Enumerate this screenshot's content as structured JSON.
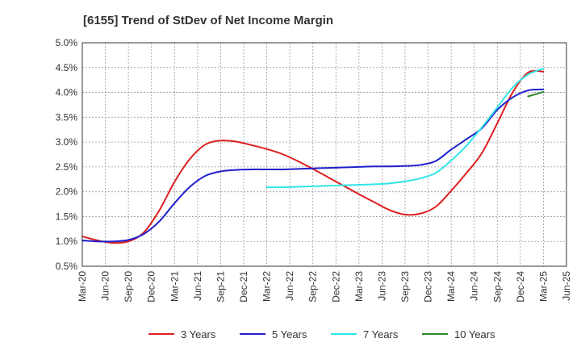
{
  "chart_data": {
    "type": "line",
    "title": "[6155]  Trend of StDev of Net Income Margin",
    "xlabel": "",
    "ylabel": "",
    "x_ticks": [
      "Mar-20",
      "Jun-20",
      "Sep-20",
      "Dec-20",
      "Mar-21",
      "Jun-21",
      "Sep-21",
      "Dec-21",
      "Mar-22",
      "Jun-22",
      "Sep-22",
      "Dec-22",
      "Mar-23",
      "Jun-23",
      "Sep-23",
      "Dec-23",
      "Mar-24",
      "Jun-24",
      "Sep-24",
      "Dec-24",
      "Mar-25",
      "Jun-25"
    ],
    "y_ticks": [
      "0.5%",
      "1.0%",
      "1.5%",
      "2.0%",
      "2.5%",
      "3.0%",
      "3.5%",
      "4.0%",
      "4.5%",
      "5.0%"
    ],
    "ylim": [
      0.5,
      5.0
    ],
    "grid": true,
    "legend_position": "bottom",
    "series": [
      {
        "name": "3 Years",
        "color": "#dd1f1f",
        "x": [
          "Mar-20",
          "May-20",
          "Jul-20",
          "Sep-20",
          "Nov-20",
          "Jan-21",
          "Mar-21",
          "May-21",
          "Jul-21",
          "Sep-21",
          "Nov-21",
          "Jan-22",
          "Mar-22",
          "May-22",
          "Jul-22",
          "Sep-22",
          "Nov-22",
          "Jan-23",
          "Mar-23",
          "May-23",
          "Jul-23",
          "Sep-23",
          "Nov-23",
          "Jan-24",
          "Mar-24",
          "May-24",
          "Jul-24",
          "Sep-24",
          "Nov-24",
          "Jan-25",
          "Mar-25"
        ],
        "values": [
          1.1,
          1.02,
          0.97,
          1.0,
          1.18,
          1.62,
          2.2,
          2.66,
          2.95,
          3.03,
          3.01,
          2.94,
          2.86,
          2.76,
          2.62,
          2.46,
          2.29,
          2.12,
          1.95,
          1.79,
          1.63,
          1.54,
          1.56,
          1.7,
          2.02,
          2.38,
          2.78,
          3.38,
          4.0,
          4.4,
          4.42
        ]
      },
      {
        "name": "5 Years",
        "color": "#1f1fcc",
        "x": [
          "Mar-20",
          "May-20",
          "Jul-20",
          "Sep-20",
          "Nov-20",
          "Jan-21",
          "Mar-21",
          "May-21",
          "Jul-21",
          "Sep-21",
          "Nov-21",
          "Jan-22",
          "Mar-22",
          "May-22",
          "Jul-22",
          "Sep-22",
          "Nov-22",
          "Jan-23",
          "Mar-23",
          "May-23",
          "Jul-23",
          "Sep-23",
          "Nov-23",
          "Jan-24",
          "Mar-24",
          "May-24",
          "Jul-24",
          "Sep-24",
          "Nov-24",
          "Jan-25",
          "Mar-25"
        ],
        "values": [
          1.02,
          1.0,
          1.0,
          1.03,
          1.15,
          1.4,
          1.77,
          2.1,
          2.32,
          2.41,
          2.44,
          2.45,
          2.45,
          2.45,
          2.46,
          2.47,
          2.48,
          2.49,
          2.5,
          2.51,
          2.51,
          2.52,
          2.54,
          2.62,
          2.85,
          3.06,
          3.28,
          3.65,
          3.9,
          4.04,
          4.06
        ]
      },
      {
        "name": "7 Years",
        "color": "#33e6e6",
        "x": [
          "Mar-22",
          "May-22",
          "Jul-22",
          "Sep-22",
          "Nov-22",
          "Jan-23",
          "Mar-23",
          "May-23",
          "Jul-23",
          "Sep-23",
          "Nov-23",
          "Jan-24",
          "Mar-24",
          "May-24",
          "Jul-24",
          "Sep-24",
          "Nov-24",
          "Jan-25",
          "Mar-25"
        ],
        "values": [
          2.09,
          2.09,
          2.1,
          2.11,
          2.12,
          2.13,
          2.14,
          2.15,
          2.17,
          2.21,
          2.27,
          2.38,
          2.63,
          2.93,
          3.3,
          3.7,
          4.1,
          4.36,
          4.48
        ]
      },
      {
        "name": "10 Years",
        "color": "#2a8a2a",
        "x": [
          "Jan-25",
          "Mar-25"
        ],
        "values": [
          3.92,
          4.01
        ]
      }
    ]
  }
}
